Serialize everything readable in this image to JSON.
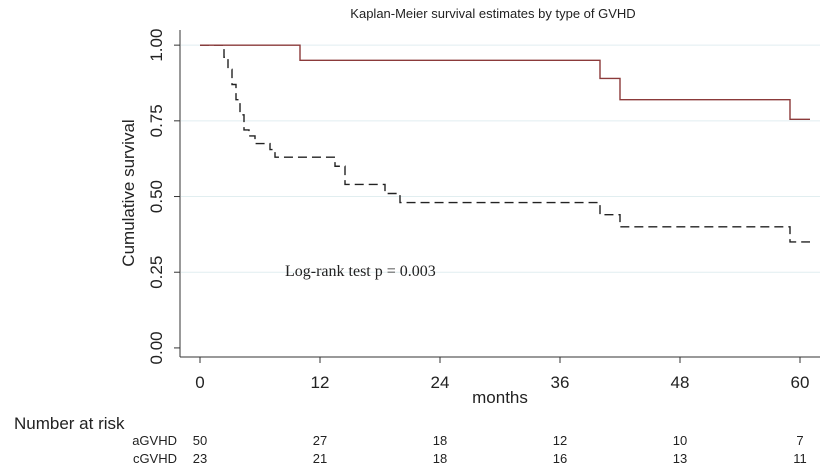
{
  "chart_data": {
    "type": "line",
    "title": "Kaplan-Meier survival estimates by type of GVHD",
    "xlabel": "months",
    "ylabel": "Cumulative survival",
    "xlim": [
      -2,
      62
    ],
    "ylim": [
      -0.03,
      1.05
    ],
    "xticks": [
      0,
      12,
      24,
      36,
      48,
      60
    ],
    "yticks": [
      "0.00",
      "0.25",
      "0.50",
      "0.75",
      "1.00"
    ],
    "grid": "horizontal",
    "annotation": "Log-rank test p = 0.003",
    "series": [
      {
        "name": "aGVHD",
        "style": "dashed",
        "color": "#222222",
        "x": [
          0,
          2,
          2.4,
          2.8,
          3.2,
          3.6,
          4,
          4.4,
          4.9,
          5.5,
          7,
          7.5,
          13.5,
          14.5,
          18.5,
          20,
          40,
          42,
          59,
          61
        ],
        "y": [
          1.0,
          1.0,
          0.96,
          0.92,
          0.87,
          0.82,
          0.77,
          0.72,
          0.7,
          0.675,
          0.655,
          0.63,
          0.6,
          0.54,
          0.51,
          0.48,
          0.44,
          0.4,
          0.35,
          0.35
        ]
      },
      {
        "name": "cGVHD",
        "style": "solid",
        "color": "#8b3a3a",
        "x": [
          0,
          10,
          40,
          42,
          59,
          61
        ],
        "y": [
          1.0,
          0.95,
          0.89,
          0.82,
          0.755,
          0.755
        ]
      }
    ],
    "risk_table": {
      "title": "Number at risk",
      "times": [
        0,
        12,
        24,
        36,
        48,
        60
      ],
      "rows": [
        {
          "label": "aGVHD",
          "values": [
            "50",
            "27",
            "18",
            "12",
            "10",
            "7"
          ]
        },
        {
          "label": "cGVHD",
          "values": [
            "23",
            "21",
            "18",
            "16",
            "13",
            "11"
          ]
        }
      ]
    }
  }
}
